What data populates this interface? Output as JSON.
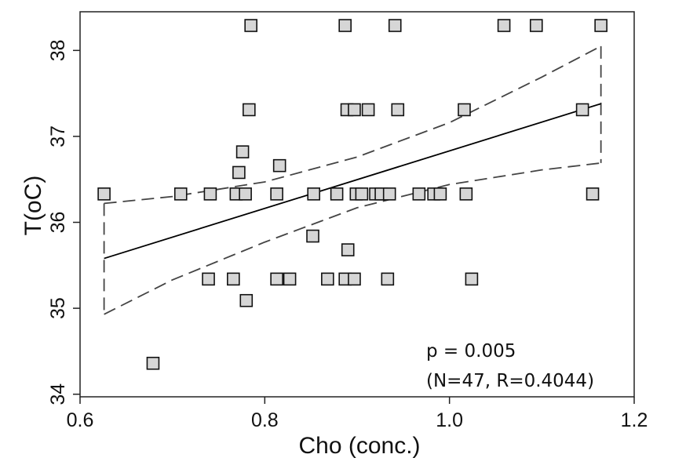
{
  "chart_data": {
    "type": "scatter",
    "xlabel": "Cho (conc.)",
    "ylabel": "T(oC)",
    "xlim": [
      0.6,
      1.2
    ],
    "ylim": [
      33.97,
      38.45
    ],
    "xticks": [
      0.6,
      0.8,
      1.0,
      1.2
    ],
    "xtick_labels": [
      "0.6",
      "0.8",
      "1.0",
      "1.2"
    ],
    "yticks": [
      34,
      35,
      36,
      37,
      38
    ],
    "ytick_labels": [
      "34",
      "35",
      "36",
      "37",
      "38"
    ],
    "grid": false,
    "legend": "none",
    "points": [
      [
        0.626,
        36.33
      ],
      [
        0.679,
        34.36
      ],
      [
        0.709,
        36.33
      ],
      [
        0.739,
        35.34
      ],
      [
        0.741,
        36.33
      ],
      [
        0.766,
        35.34
      ],
      [
        0.769,
        36.33
      ],
      [
        0.772,
        36.58
      ],
      [
        0.776,
        36.82
      ],
      [
        0.779,
        36.33
      ],
      [
        0.78,
        35.09
      ],
      [
        0.783,
        37.31
      ],
      [
        0.785,
        38.29
      ],
      [
        0.813,
        35.34
      ],
      [
        0.813,
        36.33
      ],
      [
        0.816,
        36.66
      ],
      [
        0.827,
        35.34
      ],
      [
        0.852,
        35.84
      ],
      [
        0.853,
        36.33
      ],
      [
        0.868,
        35.34
      ],
      [
        0.878,
        36.33
      ],
      [
        0.887,
        35.34
      ],
      [
        0.887,
        38.29
      ],
      [
        0.889,
        37.31
      ],
      [
        0.89,
        35.68
      ],
      [
        0.897,
        35.34
      ],
      [
        0.897,
        37.31
      ],
      [
        0.899,
        36.33
      ],
      [
        0.905,
        36.33
      ],
      [
        0.912,
        37.31
      ],
      [
        0.92,
        36.33
      ],
      [
        0.926,
        36.33
      ],
      [
        0.933,
        35.34
      ],
      [
        0.935,
        36.33
      ],
      [
        0.941,
        38.29
      ],
      [
        0.944,
        37.31
      ],
      [
        0.967,
        36.33
      ],
      [
        0.983,
        36.33
      ],
      [
        1.016,
        37.31
      ],
      [
        1.018,
        36.33
      ],
      [
        1.024,
        35.34
      ],
      [
        1.059,
        38.29
      ],
      [
        1.094,
        38.29
      ],
      [
        1.144,
        37.31
      ],
      [
        1.155,
        36.33
      ],
      [
        1.164,
        38.29
      ],
      [
        0.99,
        36.33
      ]
    ],
    "fit_line": {
      "x": [
        0.626,
        1.164
      ],
      "y": [
        35.58,
        37.38
      ]
    },
    "ci_upper": {
      "x": [
        0.626,
        0.7,
        0.8,
        0.9,
        1.0,
        1.1,
        1.164
      ],
      "y": [
        36.22,
        36.3,
        36.47,
        36.76,
        37.16,
        37.69,
        38.05
      ]
    },
    "ci_lower": {
      "x": [
        0.626,
        0.7,
        0.8,
        0.9,
        1.0,
        1.1,
        1.164
      ],
      "y": [
        34.93,
        35.33,
        35.77,
        36.17,
        36.44,
        36.61,
        36.69
      ]
    },
    "annotations": [
      "p = 0.005",
      "(N=47, R=0.4044)"
    ],
    "colors": {
      "marker_fill": "#d6d6d6",
      "marker_stroke": "#111111",
      "fit_line": "#000000",
      "ci_line": "#444444"
    }
  }
}
